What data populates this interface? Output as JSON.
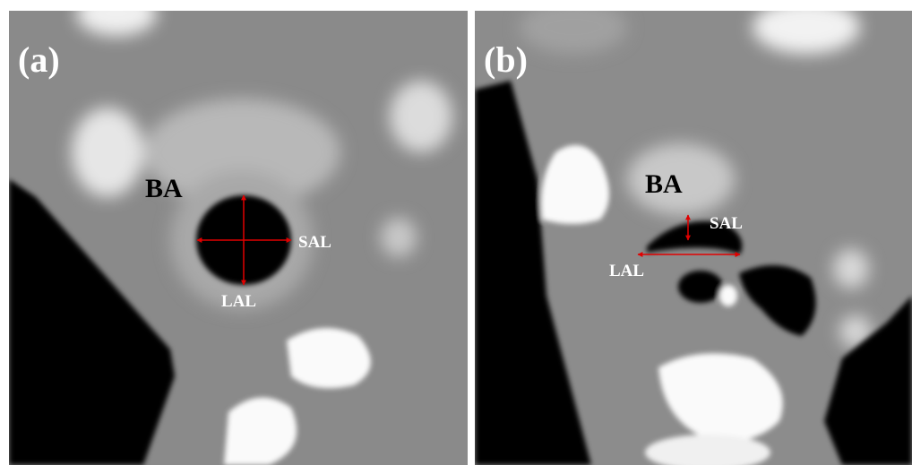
{
  "panels": [
    {
      "label": "(a)",
      "structure": "BA",
      "short_axis": "SAL",
      "long_axis": "LAL"
    },
    {
      "label": "(b)",
      "structure": "BA",
      "short_axis": "SAL",
      "long_axis": "LAL"
    }
  ]
}
